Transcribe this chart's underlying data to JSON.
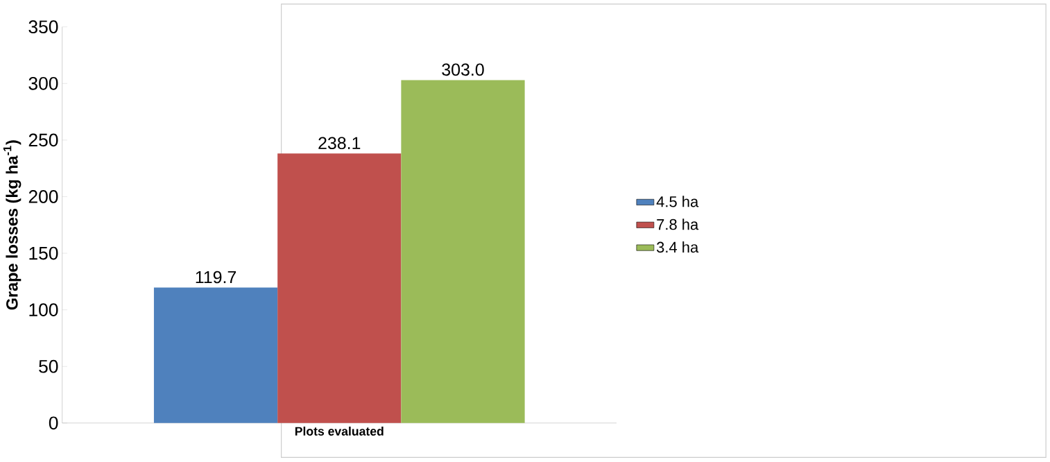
{
  "chart_data": {
    "type": "bar",
    "ylabel": "Grape losses (kg ha$^{-1}$)",
    "categories": [
      "Plots evaluated"
    ],
    "series": [
      {
        "name": "4.5 ha",
        "color": "#4f81bd",
        "values": [
          119.7
        ],
        "value_labels": [
          "119.7"
        ]
      },
      {
        "name": "7.8 ha",
        "color": "#c0504d",
        "values": [
          238.1
        ],
        "value_labels": [
          "238.1"
        ]
      },
      {
        "name": "3.4 ha",
        "color": "#9bbb59",
        "values": [
          303.0
        ],
        "value_labels": [
          "303.0"
        ]
      }
    ],
    "ylim": [
      0,
      350
    ],
    "yticks": [
      0,
      50,
      100,
      150,
      200,
      250,
      300,
      350
    ],
    "grid": false,
    "legend": "right"
  }
}
